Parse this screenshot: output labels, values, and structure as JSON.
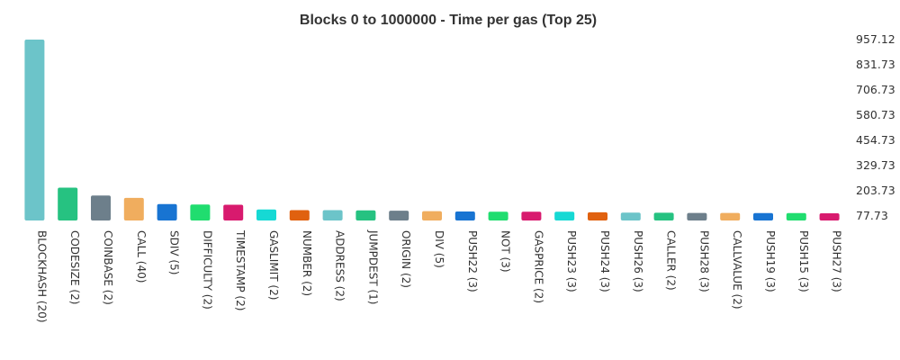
{
  "chart_data": {
    "type": "bar",
    "title": "Blocks 0 to 1000000 - Time per gas (Top 25)",
    "categories": [
      "BLOCKHASH (20)",
      "CODESIZE (2)",
      "COINBASE (2)",
      "CALL (40)",
      "SDIV (5)",
      "DIFFICULTY (2)",
      "TIMESTAMP (2)",
      "GASLIMIT (2)",
      "NUMBER (2)",
      "ADDRESS (2)",
      "JUMPDEST (1)",
      "ORIGIN (2)",
      "DIV (5)",
      "PUSH22 (3)",
      "NOT (3)",
      "GASPRICE (2)",
      "PUSH23 (3)",
      "PUSH24 (3)",
      "PUSH26 (3)",
      "CALLER (2)",
      "PUSH28 (3)",
      "CALLVALUE (2)",
      "PUSH19 (3)",
      "PUSH15 (3)",
      "PUSH27 (3)"
    ],
    "values": [
      957.1,
      219.0,
      179.5,
      168.0,
      137.0,
      135.0,
      134.0,
      110.0,
      107.0,
      107.0,
      106.0,
      104.0,
      102.0,
      100.0,
      99.0,
      99.0,
      99.0,
      96.0,
      95.0,
      94.0,
      93.0,
      93.0,
      92.0,
      92.0,
      91.0
    ],
    "colors": [
      "#6cc4c9",
      "#26c281",
      "#6d7f8b",
      "#f0ad5e",
      "#1874d2",
      "#20dd6f",
      "#d81a6e",
      "#16d9d4",
      "#e0610f",
      "#6cc4c9",
      "#26c281",
      "#6d7f8b",
      "#f0ad5e",
      "#1874d2",
      "#20dd6f",
      "#d81a6e",
      "#16d9d4",
      "#e0610f",
      "#6cc4c9",
      "#26c281",
      "#6d7f8b",
      "#f0ad5e",
      "#1874d2",
      "#20dd6f",
      "#d81a6e"
    ],
    "y_ticks": [
      "957.12",
      "831.73",
      "706.73",
      "580.73",
      "454.73",
      "329.73",
      "203.73",
      "77.73"
    ],
    "ylim": [
      77.73,
      957.12
    ],
    "y_axis_side": "right",
    "grid": false,
    "legend": "none"
  }
}
